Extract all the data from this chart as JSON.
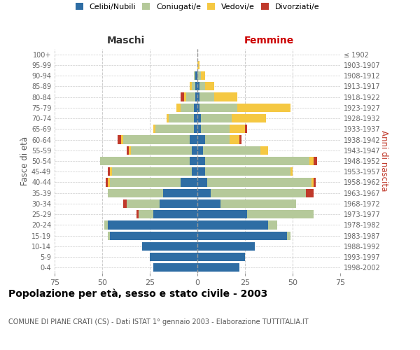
{
  "age_groups": [
    "0-4",
    "5-9",
    "10-14",
    "15-19",
    "20-24",
    "25-29",
    "30-34",
    "35-39",
    "40-44",
    "45-49",
    "50-54",
    "55-59",
    "60-64",
    "65-69",
    "70-74",
    "75-79",
    "80-84",
    "85-89",
    "90-94",
    "95-99",
    "100+"
  ],
  "birth_years": [
    "1998-2002",
    "1993-1997",
    "1988-1992",
    "1983-1987",
    "1978-1982",
    "1973-1977",
    "1968-1972",
    "1963-1967",
    "1958-1962",
    "1953-1957",
    "1948-1952",
    "1943-1947",
    "1938-1942",
    "1933-1937",
    "1928-1932",
    "1923-1927",
    "1918-1922",
    "1913-1917",
    "1908-1912",
    "1903-1907",
    "≤ 1902"
  ],
  "colors": {
    "celibe": "#2E6DA4",
    "coniugato": "#B5C99A",
    "vedovo": "#F5C842",
    "divorziato": "#C0392B"
  },
  "maschi": {
    "celibe": [
      23,
      25,
      29,
      46,
      47,
      23,
      20,
      18,
      9,
      3,
      4,
      3,
      4,
      2,
      2,
      2,
      1,
      1,
      1,
      0,
      0
    ],
    "coniugato": [
      0,
      0,
      0,
      1,
      2,
      8,
      17,
      29,
      37,
      42,
      47,
      32,
      35,
      20,
      13,
      7,
      5,
      2,
      1,
      0,
      0
    ],
    "vedovo": [
      0,
      0,
      0,
      0,
      0,
      0,
      0,
      0,
      1,
      1,
      0,
      1,
      1,
      1,
      1,
      2,
      1,
      1,
      0,
      0,
      0
    ],
    "divorziato": [
      0,
      0,
      0,
      0,
      0,
      1,
      2,
      0,
      1,
      1,
      0,
      1,
      2,
      0,
      0,
      0,
      2,
      0,
      0,
      0,
      0
    ]
  },
  "femmine": {
    "nubile": [
      22,
      25,
      30,
      47,
      37,
      26,
      12,
      7,
      5,
      4,
      4,
      3,
      4,
      2,
      2,
      1,
      1,
      1,
      0,
      0,
      0
    ],
    "coniugata": [
      0,
      0,
      0,
      2,
      5,
      35,
      40,
      50,
      55,
      45,
      55,
      30,
      13,
      15,
      16,
      20,
      8,
      3,
      2,
      0,
      0
    ],
    "vedova": [
      0,
      0,
      0,
      0,
      0,
      0,
      0,
      0,
      1,
      1,
      2,
      4,
      5,
      8,
      18,
      28,
      12,
      5,
      2,
      1,
      0
    ],
    "divorziata": [
      0,
      0,
      0,
      0,
      0,
      0,
      0,
      4,
      1,
      0,
      2,
      0,
      1,
      1,
      0,
      0,
      0,
      0,
      0,
      0,
      0
    ]
  },
  "xlim": 75,
  "title": "Popolazione per età, sesso e stato civile - 2003",
  "subtitle": "COMUNE DI PIANE CRATI (CS) - Dati ISTAT 1° gennaio 2003 - Elaborazione TUTTITALIA.IT",
  "ylabel_left": "Fasce di età",
  "ylabel_right": "Anni di nascita",
  "xlabel_left": "Maschi",
  "xlabel_right": "Femmine",
  "bg_color": "#FFFFFF",
  "grid_color": "#CCCCCC",
  "bar_height": 0.8
}
